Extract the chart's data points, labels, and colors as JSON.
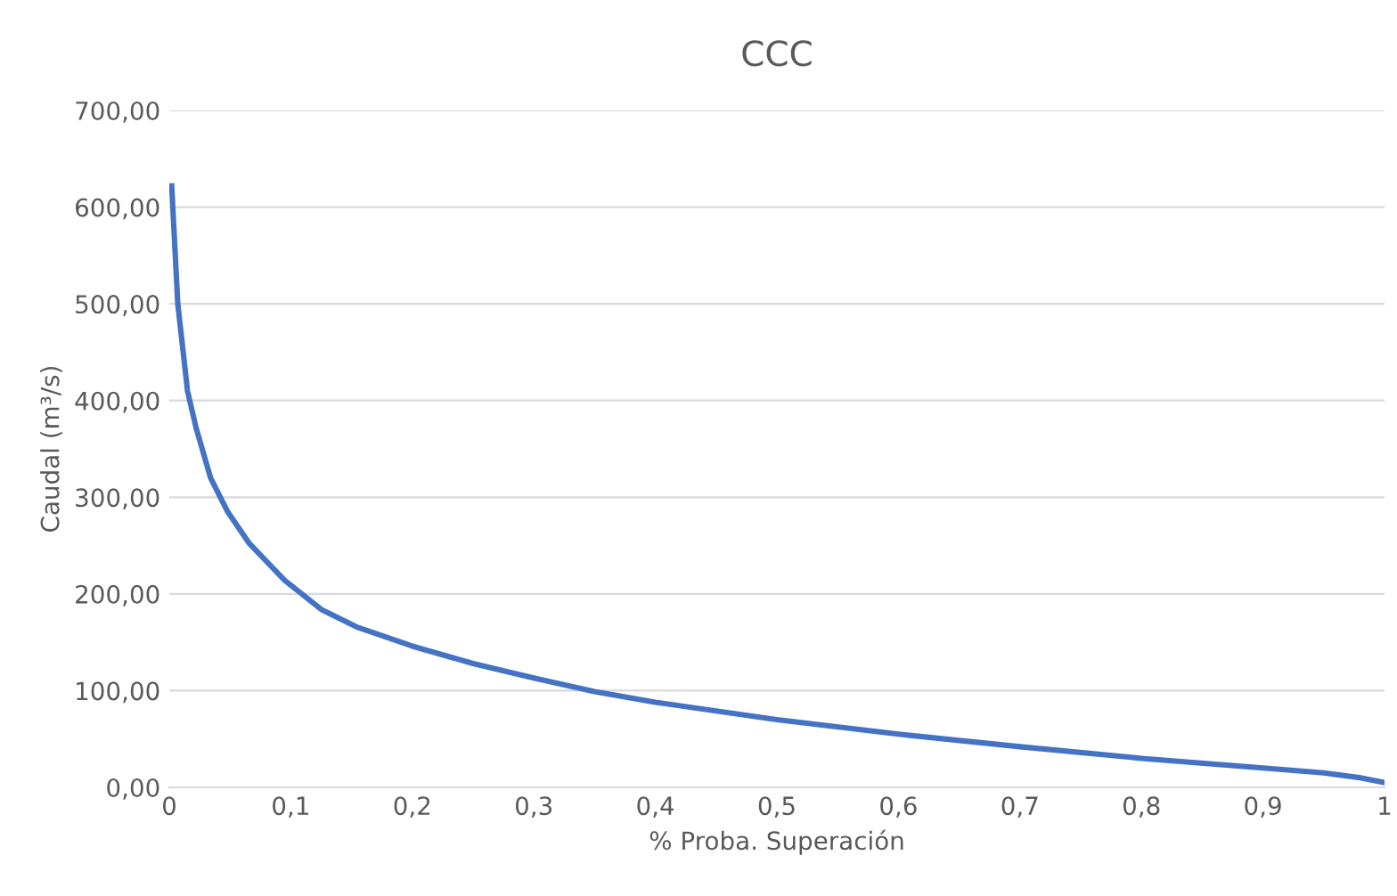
{
  "chart_data": {
    "type": "line",
    "title": "CCC",
    "xlabel": "% Proba. Superación",
    "ylabel": "Caudal (m³/s)",
    "series": [
      {
        "color": "#4472c4",
        "x": [
          0.002,
          0.007,
          0.015,
          0.022,
          0.034,
          0.048,
          0.066,
          0.095,
          0.125,
          0.154,
          0.2,
          0.25,
          0.3,
          0.35,
          0.4,
          0.5,
          0.6,
          0.7,
          0.8,
          0.9,
          0.95,
          0.98,
          1.0
        ],
        "values": [
          622,
          500,
          410,
          372,
          320,
          285,
          252,
          214,
          184,
          166,
          146,
          128,
          113,
          99,
          88,
          70,
          55,
          42,
          30,
          20,
          15,
          10,
          5
        ]
      }
    ],
    "xlim": [
      0,
      1
    ],
    "ylim": [
      0,
      700
    ],
    "xticks": [
      0,
      {
        "value": 0.1,
        "label": "0,1"
      },
      {
        "value": 0.2,
        "label": "0,2"
      },
      {
        "value": 0.3,
        "label": "0,3"
      },
      {
        "value": 0.4,
        "label": "0,4"
      },
      {
        "value": 0.5,
        "label": "0,5"
      },
      {
        "value": 0.6,
        "label": "0,6"
      },
      {
        "value": 0.7,
        "label": "0,7"
      },
      {
        "value": 0.8,
        "label": "0,8"
      },
      {
        "value": 0.9,
        "label": "0,9"
      },
      1
    ],
    "yticks": [
      {
        "value": 0,
        "label": "0,00"
      },
      {
        "value": 100,
        "label": "100,00"
      },
      {
        "value": 200,
        "label": "200,00"
      },
      {
        "value": 300,
        "label": "300,00"
      },
      {
        "value": 400,
        "label": "400,00"
      },
      {
        "value": 500,
        "label": "500,00"
      },
      {
        "value": 600,
        "label": "600,00"
      },
      {
        "value": 700,
        "label": "700,00"
      }
    ],
    "grid": "y",
    "legend": false,
    "marker": "none",
    "line_style": "solid"
  }
}
